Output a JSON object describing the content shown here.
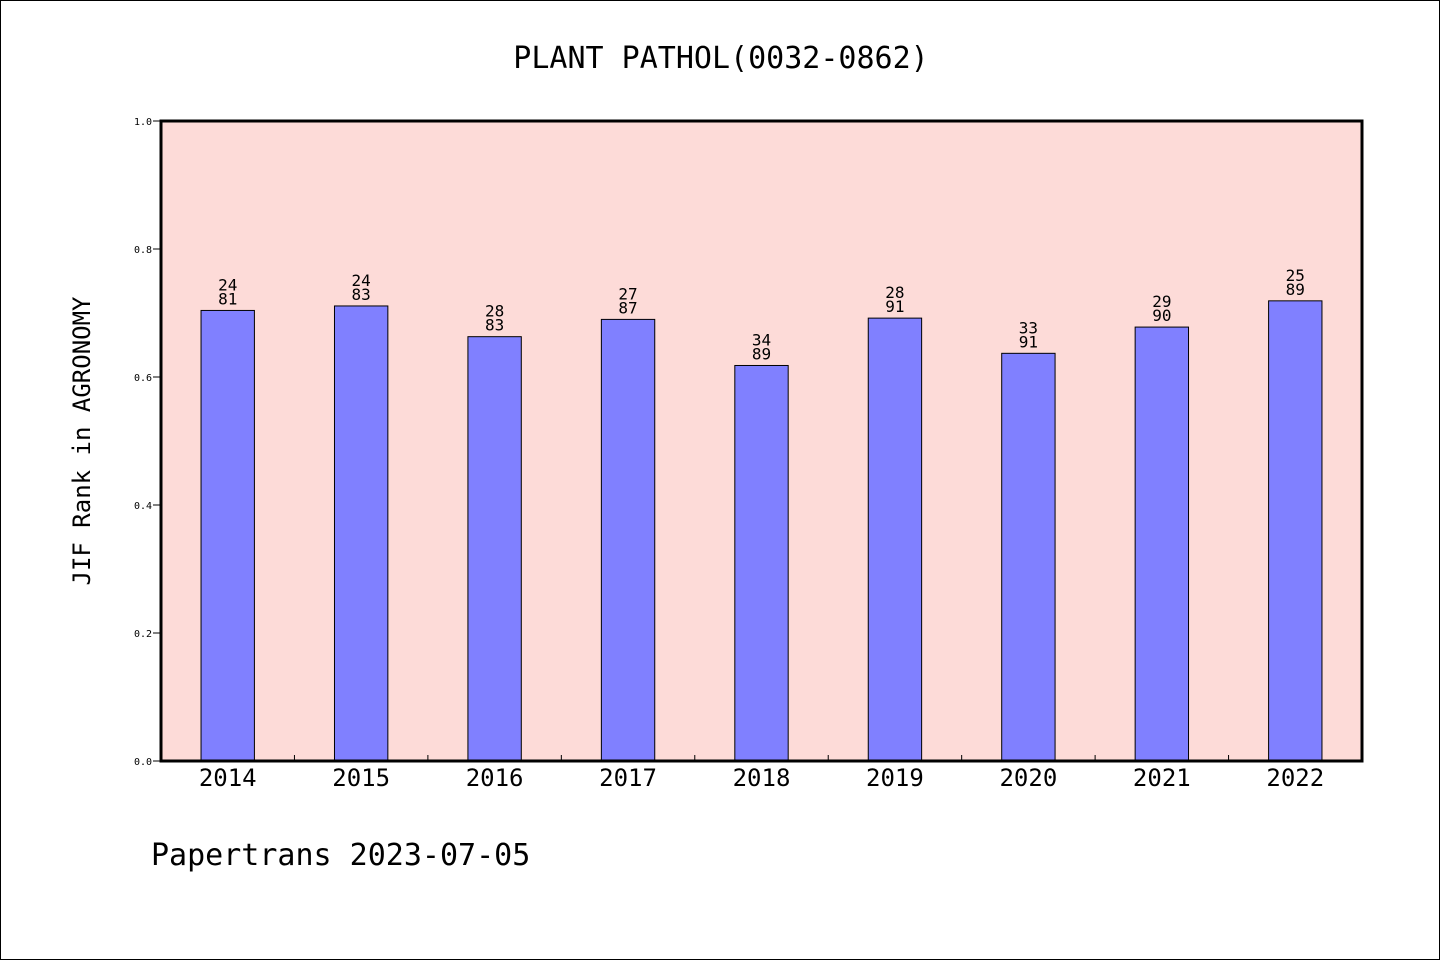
{
  "chart_data": {
    "type": "bar",
    "title": "PLANT PATHOL(0032-0862)",
    "ylabel": "JIF Rank in AGRONOMY",
    "xlabel": "",
    "ylim": [
      0,
      1.0
    ],
    "yticks": [
      "0.0",
      "0.2",
      "0.4",
      "0.6",
      "0.8",
      "1.0"
    ],
    "categories": [
      "2014",
      "2015",
      "2016",
      "2017",
      "2018",
      "2019",
      "2020",
      "2021",
      "2022"
    ],
    "values": [
      0.704,
      0.711,
      0.663,
      0.69,
      0.618,
      0.692,
      0.637,
      0.678,
      0.719
    ],
    "rank": [
      "24",
      "24",
      "28",
      "27",
      "34",
      "28",
      "33",
      "29",
      "25"
    ],
    "total": [
      "81",
      "83",
      "83",
      "87",
      "89",
      "91",
      "91",
      "90",
      "89"
    ],
    "grid": false,
    "colors": {
      "plot_background": "#fddbd8",
      "bar_fill": "#8080ff",
      "bar_edge": "#000000"
    }
  },
  "footer": "Papertrans 2023-07-05"
}
